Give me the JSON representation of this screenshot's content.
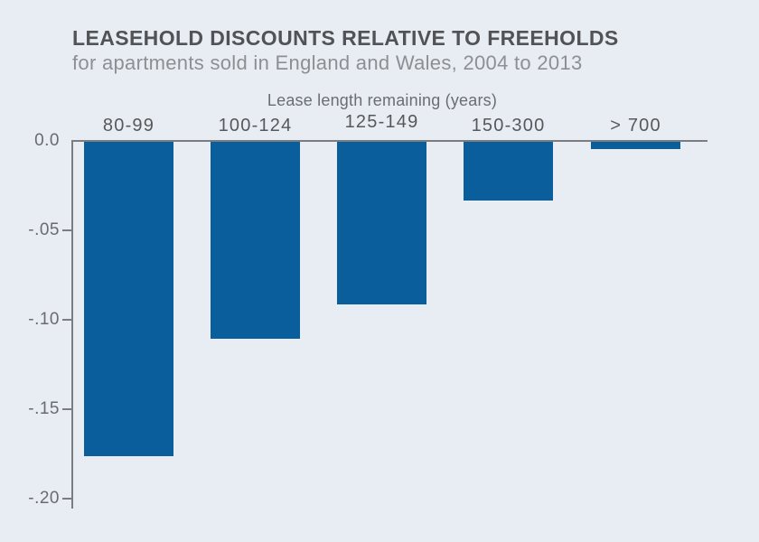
{
  "chart_data": {
    "type": "bar",
    "title": "LEASEHOLD DISCOUNTS RELATIVE TO FREEHOLDS",
    "subtitle": "for apartments sold in England and Wales, 2004 to 2013",
    "xlabel": "Lease length remaining (years)",
    "ylabel": "",
    "categories": [
      "80-99",
      "100-124",
      "125-149",
      "150-300",
      "> 700"
    ],
    "values": [
      -0.176,
      -0.11,
      -0.091,
      -0.033,
      -0.004
    ],
    "ylim": [
      -0.2,
      0.0
    ],
    "ytick_values": [
      0.0,
      -0.05,
      -0.1,
      -0.15,
      -0.2
    ],
    "ytick_labels": [
      "0.0",
      "-.05",
      "-.10",
      "-.15",
      "-.20"
    ],
    "grid": false,
    "legend": "none",
    "bar_color": "#0b5e9c",
    "background_color": "#e8edf4"
  }
}
